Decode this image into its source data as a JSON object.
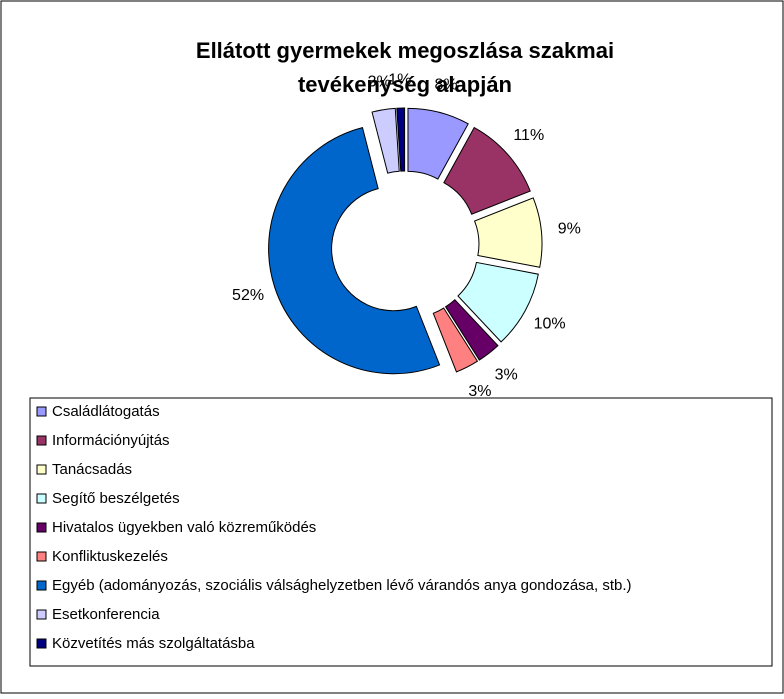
{
  "chart_data": {
    "type": "donut",
    "title": [
      "Ellátott gyermekek megoszlása szakmai",
      "tevékenység alapján"
    ],
    "categories": [
      "Családlátogatás",
      "Információnyújtás",
      "Tanácsadás",
      "Segítő beszélgetés",
      "Hivatalos ügyekben való közreműködés",
      "Konfliktuskezelés",
      "Egyéb (adományozás, szociális válsághelyzetben lévő várandós anya gondozása, stb.)",
      "Esetkonferencia",
      "Közvetítés más szolgáltatásba"
    ],
    "values": [
      8,
      11,
      9,
      10,
      3,
      3,
      52,
      3,
      1
    ],
    "value_labels": [
      "8%",
      "11%",
      "9%",
      "10%",
      "3%",
      "3%",
      "52%",
      "3%",
      "1%"
    ],
    "colors": [
      "#9999ff",
      "#993366",
      "#ffffcc",
      "#ccffff",
      "#660066",
      "#ff8080",
      "#0066cc",
      "#ccccff",
      "#000080"
    ],
    "legend": "bottom"
  }
}
